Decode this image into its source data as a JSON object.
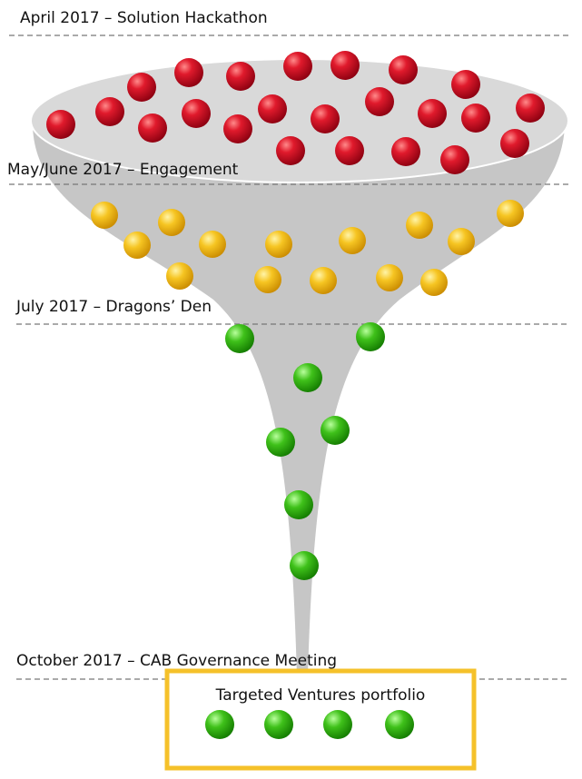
{
  "stages": [
    {
      "label": "April 2017 – Solution Hackathon"
    },
    {
      "label": "May/June 2017 – Engagement"
    },
    {
      "label": "July 2017 – Dragons’ Den"
    },
    {
      "label": "October 2017 – CAB Governance Meeting"
    }
  ],
  "portfolio": {
    "title": "Targeted Ventures portfolio"
  }
}
